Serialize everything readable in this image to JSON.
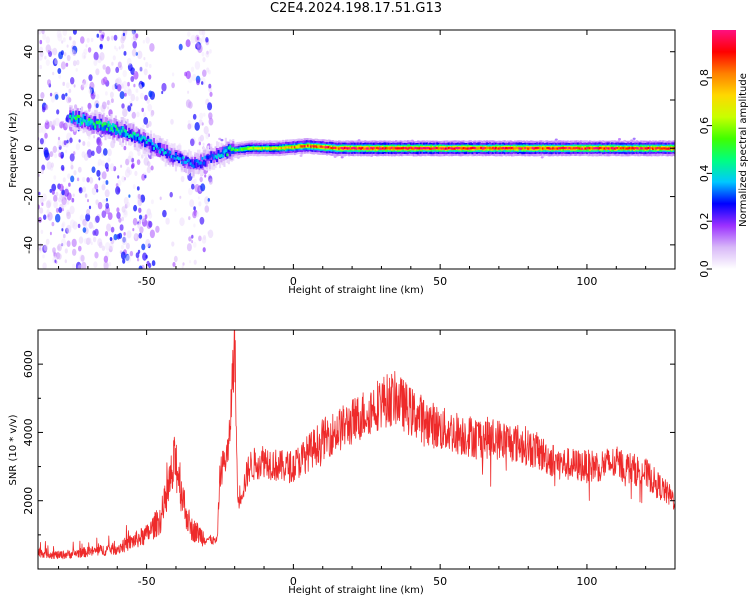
{
  "figure": {
    "title": "C2E4.2024.198.17.51.G13"
  },
  "chart_data": [
    {
      "type": "heatmap",
      "xlabel": "Height of straight line (km)",
      "ylabel": "Frequency (Hz)",
      "xlim": [
        -87,
        130
      ],
      "ylim": [
        -50,
        49
      ],
      "x_ticks": [
        -50,
        0,
        50,
        100
      ],
      "x_tick_labels": [
        "-50",
        "0",
        "50",
        "100"
      ],
      "y_ticks": [
        -40,
        -20,
        0,
        20,
        40
      ],
      "y_tick_labels": [
        "-40",
        "-20",
        "0",
        "20",
        "40"
      ],
      "colorbar": {
        "label": "Normalized spectral amplitude",
        "range": [
          0,
          1
        ],
        "ticks": [
          0.0,
          0.2,
          0.4,
          0.6,
          0.8
        ],
        "tick_labels": [
          "0.0",
          "0.2",
          "0.4",
          "0.6",
          "0.8"
        ],
        "colors": [
          "#ffffff",
          "#d8b8f8",
          "#9b30ff",
          "#0000ff",
          "#00c8ff",
          "#00ff80",
          "#40ff00",
          "#c8ff00",
          "#ffd800",
          "#ff8000",
          "#ff0000",
          "#ff1080"
        ]
      },
      "ridge": {
        "x": [
          -76,
          -70,
          -64,
          -58,
          -52,
          -46,
          -40,
          -34,
          -28,
          -22,
          -15,
          -5,
          5,
          15,
          30,
          60,
          95,
          130
        ],
        "freq": [
          13,
          11,
          9,
          7,
          4,
          0,
          -4,
          -7,
          -4,
          -1,
          0,
          0,
          1,
          0,
          0,
          0,
          0,
          0
        ],
        "peak_amplitude": [
          0.45,
          0.45,
          0.5,
          0.45,
          0.4,
          0.35,
          0.35,
          0.35,
          0.3,
          0.45,
          0.6,
          0.7,
          0.85,
          0.9,
          0.95,
          0.95,
          0.9,
          0.9
        ]
      },
      "noise_region_x": [
        -87,
        -28
      ]
    },
    {
      "type": "line",
      "xlabel": "Height of straight line (km)",
      "ylabel": "SNR (10 * v/v)",
      "xlim": [
        -87,
        130
      ],
      "ylim": [
        0,
        7000
      ],
      "x_ticks": [
        -50,
        0,
        50,
        100
      ],
      "x_tick_labels": [
        "-50",
        "0",
        "50",
        "100"
      ],
      "y_ticks": [
        2000,
        4000,
        6000
      ],
      "y_tick_labels": [
        "2000",
        "4000",
        "6000"
      ],
      "line_color": "#ee2a2a",
      "series": [
        {
          "x": [
            -87,
            -80,
            -70,
            -60,
            -55,
            -50,
            -45,
            -42,
            -40,
            -37,
            -35,
            -30,
            -26,
            -25,
            -22,
            -20,
            -19,
            -17,
            -15,
            -10,
            -5,
            0,
            10,
            20,
            30,
            35,
            40,
            50,
            60,
            70,
            80,
            90,
            100,
            110,
            120,
            125,
            130
          ],
          "y": [
            500,
            400,
            500,
            600,
            800,
            1000,
            1500,
            2500,
            3200,
            1800,
            1200,
            900,
            800,
            2800,
            3500,
            6800,
            2000,
            2400,
            3000,
            3200,
            3000,
            3000,
            3800,
            4300,
            4900,
            5000,
            4600,
            4100,
            3900,
            3800,
            3600,
            3100,
            3000,
            3100,
            2800,
            2400,
            2000
          ]
        }
      ]
    }
  ]
}
